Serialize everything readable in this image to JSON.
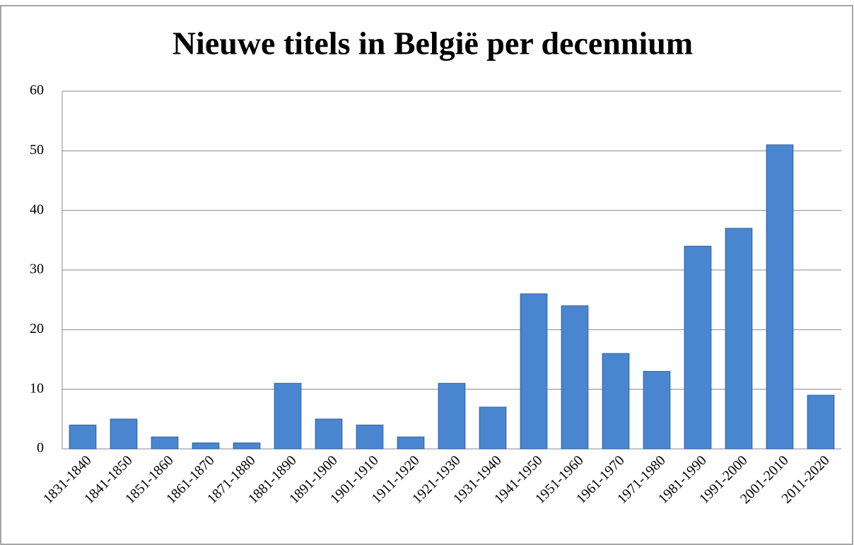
{
  "chart_data": {
    "type": "bar",
    "title": "Nieuwe titels in België per decennium",
    "categories": [
      "1831-1840",
      "1841-1850",
      "1851-1860",
      "1861-1870",
      "1871-1880",
      "1881-1890",
      "1891-1900",
      "1901-1910",
      "1911-1920",
      "1921-1930",
      "1931-1940",
      "1941-1950",
      "1951-1960",
      "1961-1970",
      "1971-1980",
      "1981-1990",
      "1991-2000",
      "2001-2010",
      "2011-2020"
    ],
    "values": [
      4,
      5,
      2,
      1,
      1,
      11,
      5,
      4,
      2,
      11,
      7,
      26,
      24,
      16,
      13,
      34,
      37,
      51,
      9
    ],
    "color": "#4a86d0",
    "ylim": [
      0,
      60
    ],
    "yticks": [
      0,
      10,
      20,
      30,
      40,
      50,
      60
    ],
    "grid": true
  }
}
